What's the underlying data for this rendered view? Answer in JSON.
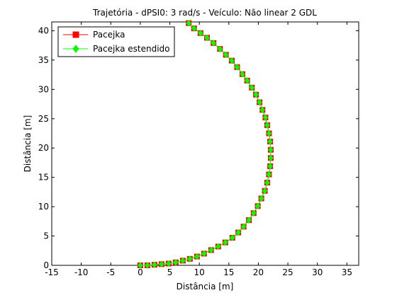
{
  "chart_data": {
    "type": "line",
    "title": "Trajetória - dPSI0: 3 rad/s - Veículo: Não linear 2 GDL",
    "xlabel": "Distância [m]",
    "ylabel": "Distância [m]",
    "xlim": [
      -15,
      37
    ],
    "ylim": [
      0,
      41.5
    ],
    "xticks": [
      -15,
      -10,
      -5,
      0,
      5,
      10,
      15,
      20,
      25,
      30,
      35
    ],
    "yticks": [
      0,
      5,
      10,
      15,
      20,
      25,
      30,
      35,
      40
    ],
    "grid": false,
    "legend_position": "top-left",
    "colors": {
      "series1": "#ff0000",
      "series2": "#00ff00"
    },
    "series": [
      {
        "name": "Pacejka",
        "marker": "square",
        "x": [
          0.0,
          1.2,
          2.4,
          3.6,
          4.8,
          6.0,
          7.2,
          8.4,
          9.6,
          10.8,
          12.0,
          13.2,
          14.4,
          15.6,
          16.6,
          17.5,
          18.4,
          19.2,
          19.9,
          20.5,
          21.1,
          21.5,
          21.8,
          22.0,
          22.1,
          22.1,
          22.0,
          21.8,
          21.5,
          21.2,
          20.7,
          20.2,
          19.6,
          18.9,
          18.1,
          17.3,
          16.4,
          15.5,
          14.5,
          13.5,
          12.4,
          11.3,
          10.2,
          9.1,
          8.2
        ],
        "y": [
          0.0,
          0.0,
          0.1,
          0.2,
          0.3,
          0.5,
          0.8,
          1.1,
          1.5,
          2.0,
          2.6,
          3.2,
          3.9,
          4.7,
          5.6,
          6.6,
          7.7,
          8.9,
          10.1,
          11.4,
          12.7,
          14.1,
          15.5,
          16.9,
          18.3,
          19.7,
          21.1,
          22.5,
          23.9,
          25.2,
          26.5,
          27.8,
          29.1,
          30.3,
          31.5,
          32.6,
          33.8,
          34.9,
          35.9,
          36.9,
          37.9,
          38.8,
          39.6,
          40.4,
          41.3
        ]
      },
      {
        "name": "Pacejka estendido",
        "marker": "diamond",
        "x": [
          0.0,
          1.2,
          2.4,
          3.6,
          4.8,
          6.0,
          7.2,
          8.4,
          9.6,
          10.8,
          12.0,
          13.2,
          14.4,
          15.6,
          16.6,
          17.5,
          18.4,
          19.2,
          19.9,
          20.5,
          21.1,
          21.5,
          21.8,
          22.0,
          22.1,
          22.1,
          22.0,
          21.8,
          21.5,
          21.2,
          20.7,
          20.2,
          19.6,
          18.9,
          18.1,
          17.3,
          16.4,
          15.5,
          14.5,
          13.5,
          12.4,
          11.3,
          10.2,
          9.1,
          8.2
        ],
        "y": [
          0.0,
          0.0,
          0.1,
          0.2,
          0.3,
          0.5,
          0.8,
          1.1,
          1.5,
          2.0,
          2.6,
          3.2,
          3.9,
          4.7,
          5.6,
          6.6,
          7.7,
          8.9,
          10.1,
          11.4,
          12.7,
          14.1,
          15.5,
          16.9,
          18.3,
          19.7,
          21.1,
          22.5,
          23.9,
          25.2,
          26.5,
          27.8,
          29.1,
          30.3,
          31.5,
          32.6,
          33.8,
          34.9,
          35.9,
          36.9,
          37.9,
          38.8,
          39.6,
          40.4,
          41.3
        ]
      }
    ]
  }
}
